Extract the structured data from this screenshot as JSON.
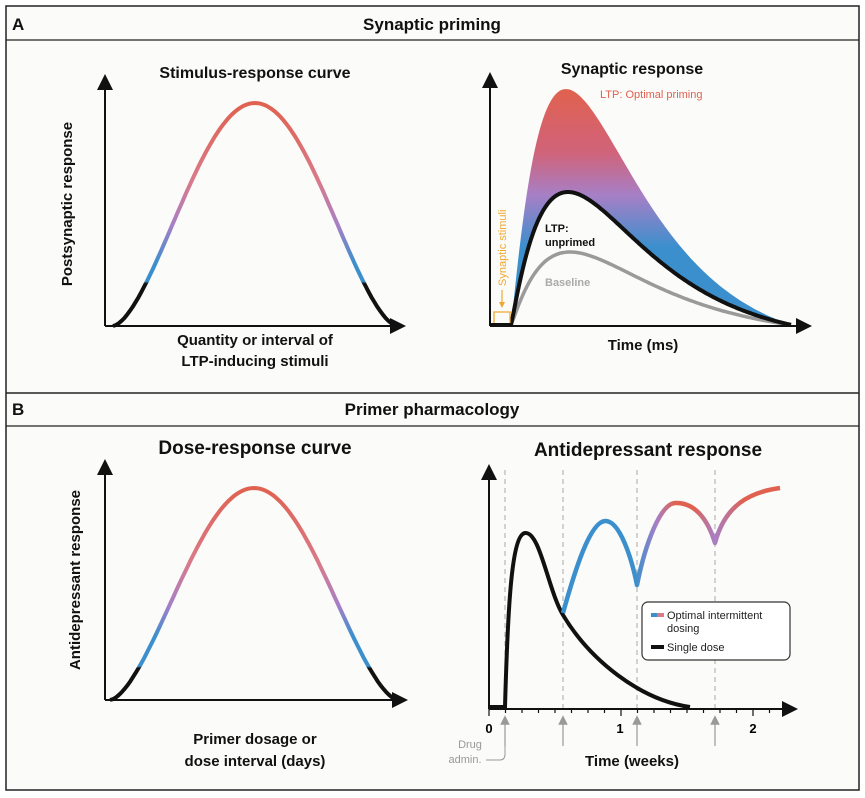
{
  "colors": {
    "red": "#e0614f",
    "purple": "#a77fc6",
    "blue": "#3b8fcd",
    "black": "#111111",
    "grey": "#9a9a9a",
    "orange": "#f0a830"
  },
  "panel_a": {
    "letter": "A",
    "title": "Synaptic priming",
    "left": {
      "title": "Stimulus-response curve",
      "ylabel": "Postsynaptic response",
      "xlabel_line1": "Quantity or interval of",
      "xlabel_line2": "LTP-inducing stimuli"
    },
    "right": {
      "title": "Synaptic response",
      "label_optimal": "LTP: Optimal priming",
      "label_unprimed_1": "LTP:",
      "label_unprimed_2": "unprimed",
      "label_baseline": "Baseline",
      "label_stimuli": "Synaptic stimuli",
      "xlabel": "Time (ms)"
    }
  },
  "panel_b": {
    "letter": "B",
    "title": "Primer pharmacology",
    "left": {
      "title": "Dose-response curve",
      "ylabel": "Antidepressant response",
      "xlabel_line1": "Primer dosage or",
      "xlabel_line2": "dose interval (days)"
    },
    "right": {
      "title": "Antidepressant response",
      "xlabel": "Time (weeks)",
      "ticks": [
        "0",
        "1",
        "2"
      ],
      "drug_label_1": "Drug",
      "drug_label_2": "admin.",
      "legend": [
        {
          "label_1": "Optimal intermittent",
          "label_2": "dosing"
        },
        {
          "label_1": "Single dose"
        }
      ]
    }
  }
}
